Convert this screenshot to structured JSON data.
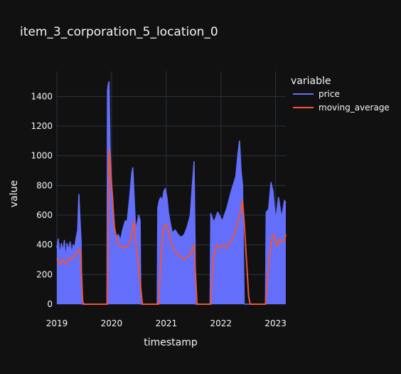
{
  "chart_data": {
    "type": "line",
    "title": "item_3_corporation_5_location_0",
    "xlabel": "timestamp",
    "ylabel": "value",
    "x_range": [
      "2019-01-01",
      "2023-03-10"
    ],
    "ylim": [
      0,
      1570
    ],
    "x_ticks": [
      "2019",
      "2020",
      "2021",
      "2022",
      "2023"
    ],
    "y_ticks": [
      0,
      200,
      400,
      600,
      800,
      1000,
      1200,
      1400
    ],
    "grid": true,
    "legend": {
      "title": "variable",
      "placement": "right-top",
      "entries": [
        "price",
        "moving_average"
      ]
    },
    "colors": {
      "price": "#636efa",
      "moving_average": "#ef553b",
      "background": "#111111",
      "grid": "#283442"
    },
    "series": [
      {
        "name": "price",
        "points": [
          [
            "2019-01-01",
            380
          ],
          [
            "2019-01-10",
            440
          ],
          [
            "2019-01-20",
            330
          ],
          [
            "2019-01-31",
            410
          ],
          [
            "2019-02-10",
            350
          ],
          [
            "2019-02-20",
            430
          ],
          [
            "2019-02-28",
            300
          ],
          [
            "2019-03-10",
            410
          ],
          [
            "2019-03-20",
            360
          ],
          [
            "2019-03-31",
            420
          ],
          [
            "2019-04-10",
            340
          ],
          [
            "2019-04-20",
            400
          ],
          [
            "2019-04-30",
            380
          ],
          [
            "2019-05-10",
            450
          ],
          [
            "2019-05-20",
            500
          ],
          [
            "2019-05-28",
            740
          ],
          [
            "2019-06-05",
            560
          ],
          [
            "2019-06-12",
            420
          ],
          [
            "2019-06-18",
            0
          ],
          [
            "2019-12-01",
            0
          ],
          [
            "2019-12-05",
            1440
          ],
          [
            "2019-12-10",
            1480
          ],
          [
            "2019-12-15",
            1500
          ],
          [
            "2019-12-22",
            1060
          ],
          [
            "2020-01-01",
            820
          ],
          [
            "2020-01-10",
            700
          ],
          [
            "2020-01-20",
            500
          ],
          [
            "2020-02-01",
            450
          ],
          [
            "2020-02-15",
            470
          ],
          [
            "2020-03-01",
            430
          ],
          [
            "2020-03-15",
            500
          ],
          [
            "2020-04-01",
            560
          ],
          [
            "2020-04-15",
            560
          ],
          [
            "2020-05-01",
            720
          ],
          [
            "2020-05-15",
            880
          ],
          [
            "2020-05-22",
            920
          ],
          [
            "2020-06-01",
            700
          ],
          [
            "2020-06-10",
            500
          ],
          [
            "2020-07-01",
            600
          ],
          [
            "2020-07-10",
            560
          ],
          [
            "2020-07-15",
            0
          ],
          [
            "2020-11-01",
            0
          ],
          [
            "2020-11-05",
            650
          ],
          [
            "2020-11-15",
            700
          ],
          [
            "2020-11-25",
            720
          ],
          [
            "2020-12-05",
            690
          ],
          [
            "2020-12-15",
            760
          ],
          [
            "2020-12-25",
            780
          ],
          [
            "2021-01-05",
            720
          ],
          [
            "2021-01-15",
            620
          ],
          [
            "2021-01-25",
            560
          ],
          [
            "2021-02-10",
            480
          ],
          [
            "2021-03-01",
            500
          ],
          [
            "2021-03-20",
            470
          ],
          [
            "2021-04-10",
            450
          ],
          [
            "2021-05-01",
            470
          ],
          [
            "2021-05-20",
            520
          ],
          [
            "2021-06-10",
            600
          ],
          [
            "2021-06-25",
            820
          ],
          [
            "2021-07-05",
            960
          ],
          [
            "2021-07-12",
            420
          ],
          [
            "2021-07-15",
            0
          ],
          [
            "2021-10-20",
            0
          ],
          [
            "2021-10-25",
            610
          ],
          [
            "2021-11-15",
            550
          ],
          [
            "2021-12-10",
            620
          ],
          [
            "2022-01-10",
            560
          ],
          [
            "2022-02-10",
            650
          ],
          [
            "2022-03-10",
            760
          ],
          [
            "2022-04-10",
            860
          ],
          [
            "2022-04-25",
            1020
          ],
          [
            "2022-05-05",
            1100
          ],
          [
            "2022-05-15",
            900
          ],
          [
            "2022-05-25",
            800
          ],
          [
            "2022-06-05",
            0
          ],
          [
            "2022-10-25",
            0
          ],
          [
            "2022-10-30",
            620
          ],
          [
            "2022-11-15",
            640
          ],
          [
            "2022-12-01",
            820
          ],
          [
            "2022-12-15",
            760
          ],
          [
            "2023-01-01",
            560
          ],
          [
            "2023-01-20",
            720
          ],
          [
            "2023-02-10",
            580
          ],
          [
            "2023-03-01",
            700
          ],
          [
            "2023-03-10",
            680
          ]
        ]
      },
      {
        "name": "moving_average",
        "points": [
          [
            "2019-01-01",
            310
          ],
          [
            "2019-01-20",
            270
          ],
          [
            "2019-02-10",
            300
          ],
          [
            "2019-03-01",
            270
          ],
          [
            "2019-03-20",
            310
          ],
          [
            "2019-04-10",
            300
          ],
          [
            "2019-04-30",
            330
          ],
          [
            "2019-05-20",
            360
          ],
          [
            "2019-06-05",
            370
          ],
          [
            "2019-06-15",
            200
          ],
          [
            "2019-06-22",
            20
          ],
          [
            "2019-07-01",
            0
          ],
          [
            "2019-12-05",
            0
          ],
          [
            "2019-12-10",
            600
          ],
          [
            "2019-12-14",
            950
          ],
          [
            "2019-12-18",
            1040
          ],
          [
            "2019-12-25",
            900
          ],
          [
            "2020-01-05",
            750
          ],
          [
            "2020-01-20",
            520
          ],
          [
            "2020-02-10",
            410
          ],
          [
            "2020-03-01",
            390
          ],
          [
            "2020-04-01",
            380
          ],
          [
            "2020-04-25",
            400
          ],
          [
            "2020-05-15",
            470
          ],
          [
            "2020-05-28",
            560
          ],
          [
            "2020-06-10",
            420
          ],
          [
            "2020-06-25",
            300
          ],
          [
            "2020-07-10",
            150
          ],
          [
            "2020-07-25",
            0
          ],
          [
            "2020-11-10",
            0
          ],
          [
            "2020-11-25",
            280
          ],
          [
            "2020-12-10",
            500
          ],
          [
            "2020-12-25",
            540
          ],
          [
            "2021-01-10",
            520
          ],
          [
            "2021-01-25",
            450
          ],
          [
            "2021-02-10",
            390
          ],
          [
            "2021-03-05",
            350
          ],
          [
            "2021-04-05",
            320
          ],
          [
            "2021-05-01",
            300
          ],
          [
            "2021-05-20",
            320
          ],
          [
            "2021-06-10",
            330
          ],
          [
            "2021-06-25",
            380
          ],
          [
            "2021-07-05",
            400
          ],
          [
            "2021-07-15",
            200
          ],
          [
            "2021-07-25",
            0
          ],
          [
            "2021-10-25",
            0
          ],
          [
            "2021-11-10",
            300
          ],
          [
            "2021-12-01",
            400
          ],
          [
            "2021-12-20",
            380
          ],
          [
            "2022-01-15",
            400
          ],
          [
            "2022-02-10",
            380
          ],
          [
            "2022-03-05",
            420
          ],
          [
            "2022-04-01",
            470
          ],
          [
            "2022-04-25",
            560
          ],
          [
            "2022-05-15",
            640
          ],
          [
            "2022-05-25",
            700
          ],
          [
            "2022-06-05",
            550
          ],
          [
            "2022-06-20",
            300
          ],
          [
            "2022-07-05",
            50
          ],
          [
            "2022-07-15",
            0
          ],
          [
            "2022-10-25",
            0
          ],
          [
            "2022-11-15",
            260
          ],
          [
            "2022-12-05",
            440
          ],
          [
            "2022-12-20",
            470
          ],
          [
            "2023-01-10",
            390
          ],
          [
            "2023-01-25",
            440
          ],
          [
            "2023-02-10",
            420
          ],
          [
            "2023-03-01",
            430
          ],
          [
            "2023-03-10",
            470
          ]
        ]
      }
    ]
  }
}
